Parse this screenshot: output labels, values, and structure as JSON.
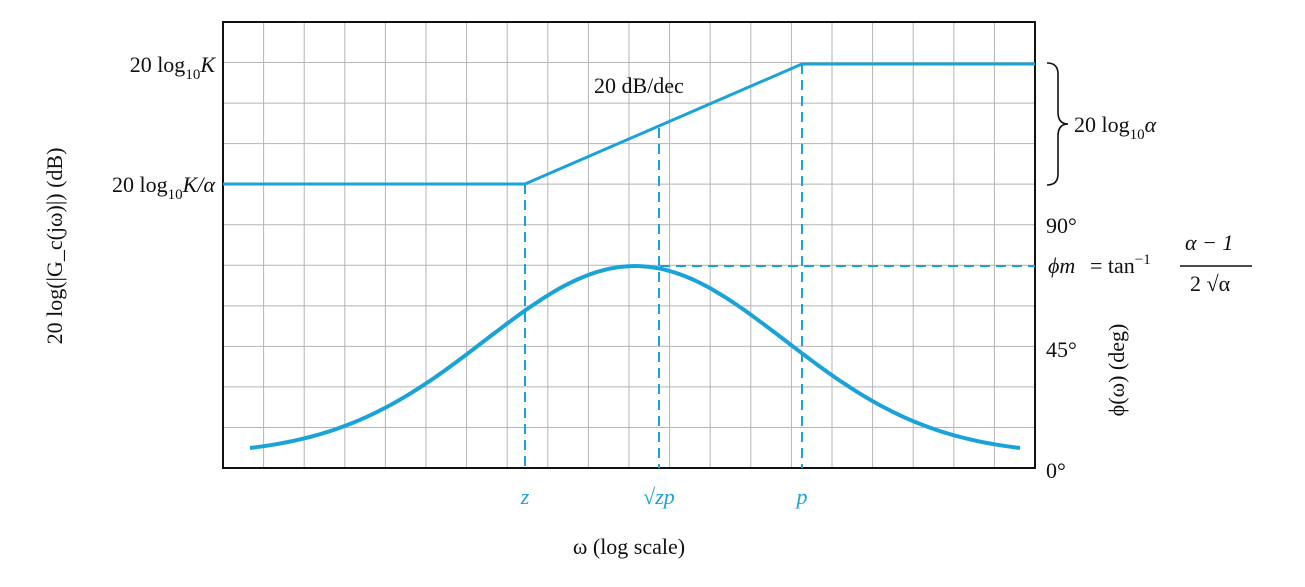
{
  "colors": {
    "curve": "#1aa3d9",
    "grid": "#b5b5b5",
    "frame": "#111111",
    "text": "#111111"
  },
  "magnitude_axis": {
    "label": "20 log(|G_c(jω)|) (dB)",
    "ticks": [
      {
        "text": "20 log10K",
        "base": "20 log",
        "sub": "10",
        "var": "K"
      },
      {
        "text": "20 log10K/α",
        "base": "20 log",
        "sub": "10",
        "var": "K/α"
      }
    ]
  },
  "phase_axis": {
    "label": "ϕ(ω) (deg)",
    "ticks": [
      "90°",
      "45°",
      "0°"
    ]
  },
  "x_axis": {
    "label": "ω (log scale)",
    "ticks": [
      "z",
      "√zp",
      "p"
    ]
  },
  "annotations": {
    "slope": "20 dB/dec",
    "gain_span": {
      "text": "20 log10α",
      "base": "20 log",
      "sub": "10",
      "var": "α"
    },
    "phase_max": {
      "lhs": "ϕm",
      "eq": "= tan",
      "exp": "−1",
      "numerator": "α − 1",
      "denominator": "2 √α"
    }
  },
  "curves": {
    "magnitude": {
      "shape": "piecewise linear: flat, rising 20 dB/dec from z to p, flat"
    },
    "phase": {
      "shape": "bell curve peaking at √zp"
    }
  }
}
